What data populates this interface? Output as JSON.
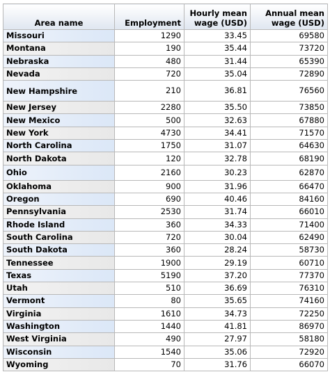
{
  "table": {
    "header": [
      "Area name",
      "Employment",
      "Hourly mean wage  (USD)",
      "Annual mean wage (USD)"
    ],
    "rows": [
      [
        "Missouri",
        "1290",
        "33.45",
        "69580"
      ],
      [
        "Montana",
        "190",
        "35.44",
        "73720"
      ],
      [
        "Nebraska",
        "480",
        "31.44",
        "65390"
      ],
      [
        "Nevada",
        "720",
        "35.04",
        "72890"
      ],
      [
        "New Hampshire",
        "210",
        "36.81",
        "76560"
      ],
      [
        "New Jersey",
        "2280",
        "35.50",
        "73850"
      ],
      [
        "New Mexico",
        "500",
        "32.63",
        "67880"
      ],
      [
        "New York",
        "4730",
        "34.41",
        "71570"
      ],
      [
        "North Carolina",
        "1750",
        "31.07",
        "64630"
      ],
      [
        "North Dakota",
        "120",
        "32.78",
        "68190"
      ],
      [
        "Ohio",
        "2160",
        "30.23",
        "62870"
      ],
      [
        "Oklahoma",
        "900",
        "31.96",
        "66470"
      ],
      [
        "Oregon",
        "690",
        "40.46",
        "84160"
      ],
      [
        "Pennsylvania",
        "2530",
        "31.74",
        "66010"
      ],
      [
        "Rhode Island",
        "360",
        "34.33",
        "71400"
      ],
      [
        "South Carolina",
        "720",
        "30.04",
        "62490"
      ],
      [
        "South Dakota",
        "360",
        "28.24",
        "58730"
      ],
      [
        "Tennessee",
        "1900",
        "29.19",
        "60710"
      ],
      [
        "Texas",
        "5190",
        "37.20",
        "77370"
      ],
      [
        "Utah",
        "510",
        "36.69",
        "76310"
      ],
      [
        "Vermont",
        "80",
        "35.65",
        "74160"
      ],
      [
        "Virginia",
        "1610",
        "34.73",
        "72250"
      ],
      [
        "Washington",
        "1440",
        "41.81",
        "86970"
      ],
      [
        "West Virginia",
        "490",
        "27.97",
        "58180"
      ],
      [
        "Wisconsin",
        "1540",
        "35.06",
        "72920"
      ],
      [
        "Wyoming",
        "70",
        "31.76",
        "66070"
      ]
    ]
  }
}
